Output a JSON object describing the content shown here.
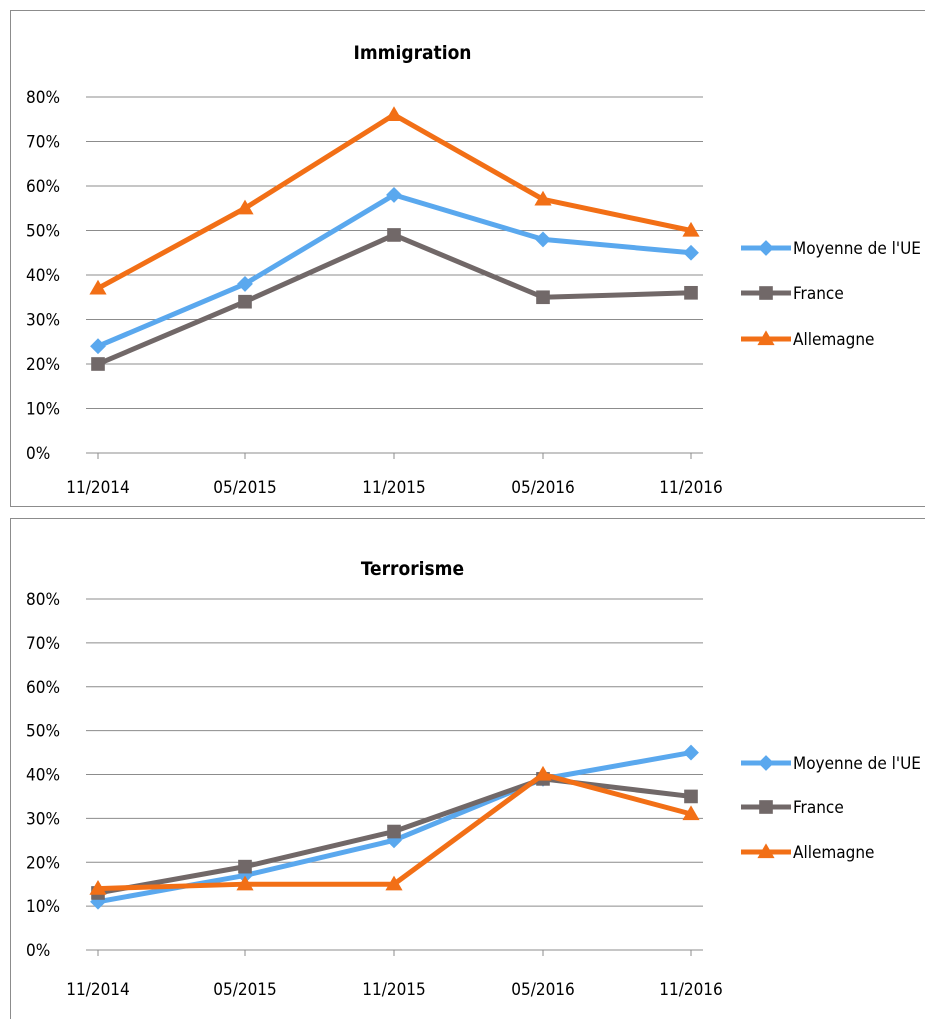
{
  "chart_data": [
    {
      "type": "line",
      "title": "Immigration",
      "x": [
        "11/2014",
        "05/2015",
        "11/2015",
        "05/2016",
        "11/2016"
      ],
      "y_ticks": [
        "0%",
        "10%",
        "20%",
        "30%",
        "40%",
        "50%",
        "60%",
        "70%",
        "80%"
      ],
      "ylim": [
        0,
        80
      ],
      "grid": true,
      "legend_position": "right",
      "series": [
        {
          "name": "Moyenne de l'UE",
          "marker": "diamond",
          "color": "#5aa8ee",
          "values": [
            24,
            38,
            58,
            48,
            45
          ]
        },
        {
          "name": "France",
          "marker": "square",
          "color": "#716868",
          "values": [
            20,
            34,
            49,
            35,
            36
          ]
        },
        {
          "name": "Allemagne",
          "marker": "triangle",
          "color": "#f26f16",
          "values": [
            37,
            55,
            76,
            57,
            50
          ]
        }
      ]
    },
    {
      "type": "line",
      "title": "Terrorisme",
      "x": [
        "11/2014",
        "05/2015",
        "11/2015",
        "05/2016",
        "11/2016"
      ],
      "y_ticks": [
        "0%",
        "10%",
        "20%",
        "30%",
        "40%",
        "50%",
        "60%",
        "70%",
        "80%"
      ],
      "ylim": [
        0,
        80
      ],
      "grid": true,
      "legend_position": "right",
      "series": [
        {
          "name": "Moyenne de l'UE",
          "marker": "diamond",
          "color": "#5aa8ee",
          "values": [
            11,
            17,
            25,
            39,
            45
          ]
        },
        {
          "name": "France",
          "marker": "square",
          "color": "#716868",
          "values": [
            13,
            19,
            27,
            39,
            35
          ]
        },
        {
          "name": "Allemagne",
          "marker": "triangle",
          "color": "#f26f16",
          "values": [
            14,
            15,
            15,
            40,
            31
          ]
        }
      ]
    }
  ]
}
